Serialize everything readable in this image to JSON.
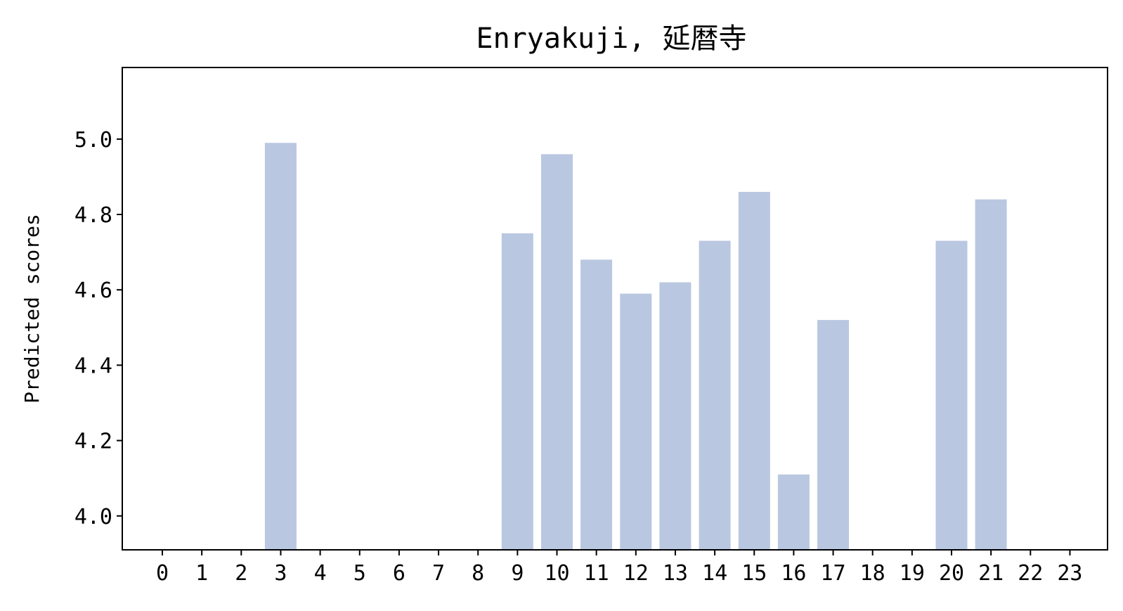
{
  "chart_data": {
    "type": "bar",
    "title": "Enryakuji, 延暦寺",
    "xlabel": "",
    "ylabel": "Predicted scores",
    "categories": [
      "0",
      "1",
      "2",
      "3",
      "4",
      "5",
      "6",
      "7",
      "8",
      "9",
      "10",
      "11",
      "12",
      "13",
      "14",
      "15",
      "16",
      "17",
      "18",
      "19",
      "20",
      "21",
      "22",
      "23"
    ],
    "values": [
      null,
      null,
      null,
      4.99,
      null,
      null,
      null,
      null,
      null,
      4.75,
      4.96,
      4.68,
      4.59,
      4.62,
      4.73,
      4.86,
      4.11,
      4.52,
      null,
      null,
      4.73,
      4.84,
      null,
      null
    ],
    "ylim": [
      3.91,
      5.19
    ],
    "yticks": [
      4.0,
      4.2,
      4.4,
      4.6,
      4.8,
      5.0
    ],
    "ytick_labels": [
      "4.0",
      "4.2",
      "4.4",
      "4.6",
      "4.8",
      "5.0"
    ],
    "bar_color": "#bac7e1",
    "grid": false,
    "legend": "none"
  }
}
